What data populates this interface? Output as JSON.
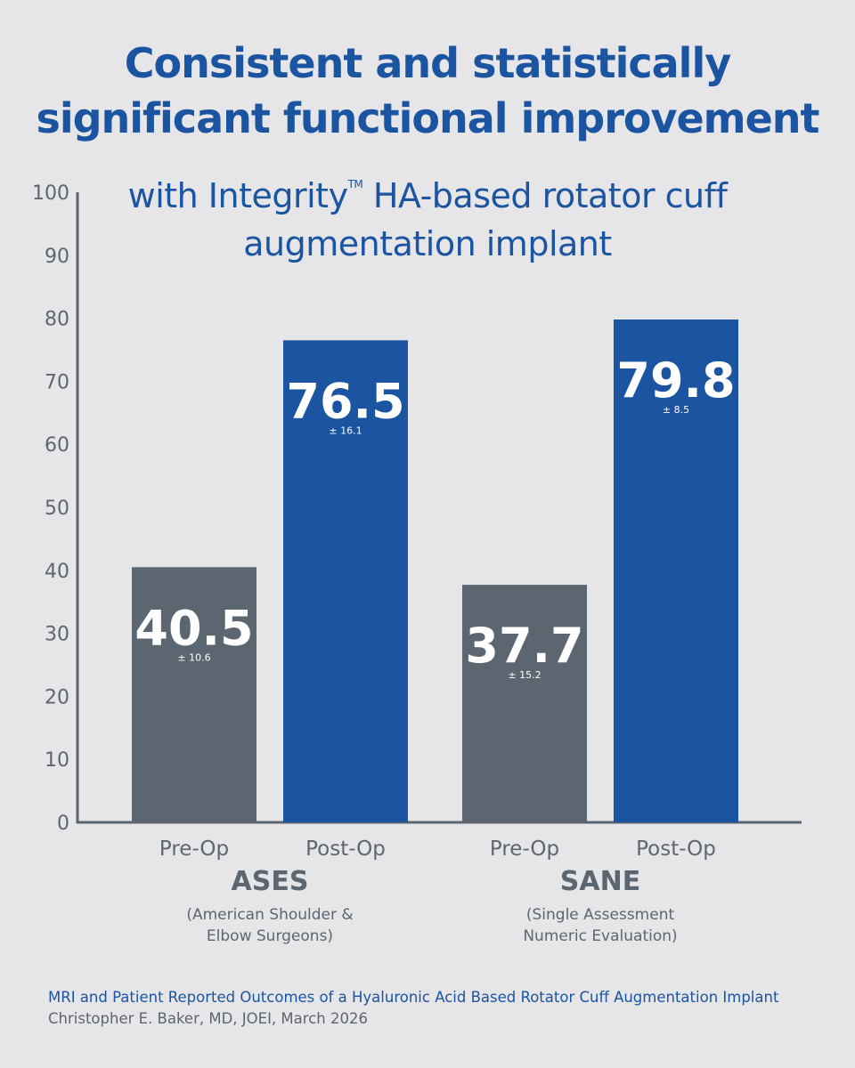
{
  "title": {
    "line1": "Consistent and statistically",
    "line2": "significant functional improvement"
  },
  "subtitle": {
    "line1_prefix": "with Integrity",
    "trademark": "TM",
    "line1_suffix": " HA-based rotator cuff",
    "line2": "augmentation implant"
  },
  "colors": {
    "pre_op": "#5c6670",
    "post_op": "#1b54a0",
    "axis": "#5c6670",
    "title": "#1b54a0",
    "background": "#e6e6e8"
  },
  "chart_data": {
    "type": "bar",
    "ylim": [
      0,
      100
    ],
    "yticks": [
      "0",
      "10",
      "20",
      "30",
      "40",
      "50",
      "60",
      "70",
      "80",
      "90",
      "100"
    ],
    "grid": false,
    "groups": [
      {
        "name": "ASES",
        "description": [
          "(American Shoulder &",
          "Elbow Surgeons)"
        ],
        "bars": [
          {
            "category": "Pre-Op",
            "value": 40.5,
            "label": "40.5",
            "error_label": "± 10.6",
            "series": "pre"
          },
          {
            "category": "Post-Op",
            "value": 76.5,
            "label": "76.5",
            "error_label": "± 16.1",
            "series": "post"
          }
        ]
      },
      {
        "name": "SANE",
        "description": [
          "(Single Assessment",
          "Numeric Evaluation)"
        ],
        "bars": [
          {
            "category": "Pre-Op",
            "value": 37.7,
            "label": "37.7",
            "error_label": "± 15.2",
            "series": "pre"
          },
          {
            "category": "Post-Op",
            "value": 79.8,
            "label": "79.8",
            "error_label": "± 8.5",
            "series": "post"
          }
        ]
      }
    ]
  },
  "citation": {
    "title": "MRI and Patient Reported Outcomes of a Hyaluronic Acid Based Rotator Cuff Augmentation Implant",
    "author": "Christopher E. Baker, MD, JOEI, March 2026"
  }
}
